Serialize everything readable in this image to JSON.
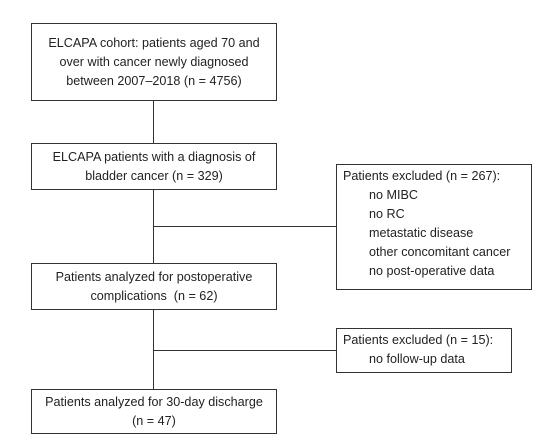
{
  "boxes": {
    "cohort": {
      "lines": [
        "ELCAPA cohort: patients aged 70 and",
        "over with cancer newly diagnosed",
        "between 2007–2018 (n = 4756)"
      ]
    },
    "bladder": {
      "lines": [
        "ELCAPA patients with a diagnosis of",
        "bladder cancer (n = 329)"
      ]
    },
    "excluded_1": {
      "title": "Patients excluded (n = 267):",
      "items": [
        "no MIBC",
        "no RC",
        "metastatic disease",
        "other concomitant cancer",
        "no post-operative data"
      ]
    },
    "analyzed_complications": {
      "lines": [
        "Patients analyzed for postoperative",
        "complications  (n = 62)"
      ]
    },
    "excluded_2": {
      "title": "Patients excluded (n = 15):",
      "items": [
        "no follow-up data"
      ]
    },
    "analyzed_discharge": {
      "lines": [
        "Patients analyzed for 30-day discharge",
        "(n = 47)"
      ]
    }
  },
  "colors": {
    "border": "#333333",
    "text": "#222222",
    "background": "#ffffff"
  }
}
